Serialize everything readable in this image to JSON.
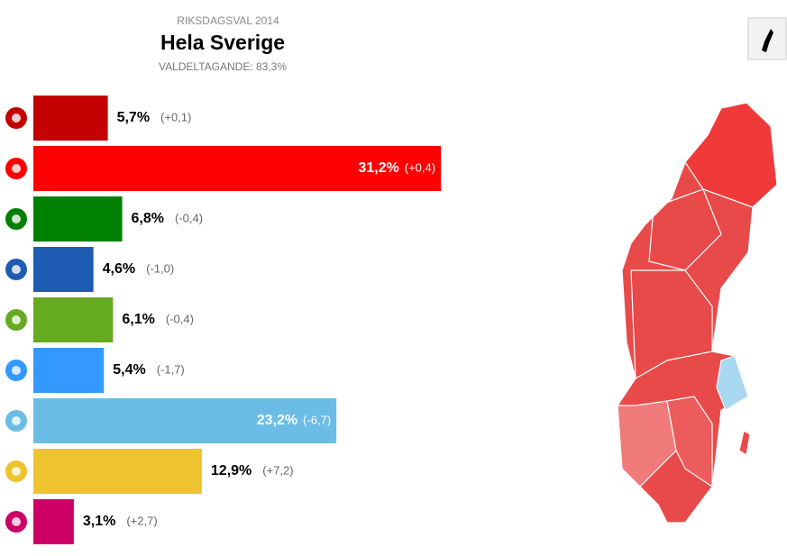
{
  "chart_data": {
    "type": "bar",
    "kicker": "RIKSDAGSVAL 2014",
    "title": "Hela Sverige",
    "subtitle": "VALDELTAGANDE: 83,3%",
    "series": [
      {
        "values": [
          5.7,
          31.2,
          6.8,
          4.6,
          6.1,
          5.4,
          23.2,
          12.9,
          3.1
        ],
        "value_labels": [
          "5,7%",
          "31,2%",
          "6,8%",
          "4,6%",
          "6,1%",
          "5,4%",
          "23,2%",
          "12,9%",
          "3,1%"
        ],
        "colors": [
          "#c40000",
          "#ff0000",
          "#008000",
          "#1e5cb3",
          "#66aa22",
          "#3399ff",
          "#6cbde6",
          "#eec42e",
          "#cc0066"
        ],
        "changes": [
          0.1,
          0.4,
          -0.4,
          -1.0,
          -0.4,
          -1.7,
          -6.7,
          7.2,
          2.7
        ],
        "change_labels": [
          "(+0,1)",
          "(+0,4)",
          "(-0,4)",
          "(-1,0)",
          "(-0,4)",
          "(-1,7)",
          "(-6,7)",
          "(+7,2)",
          "(+2,7)"
        ]
      }
    ]
  }
}
